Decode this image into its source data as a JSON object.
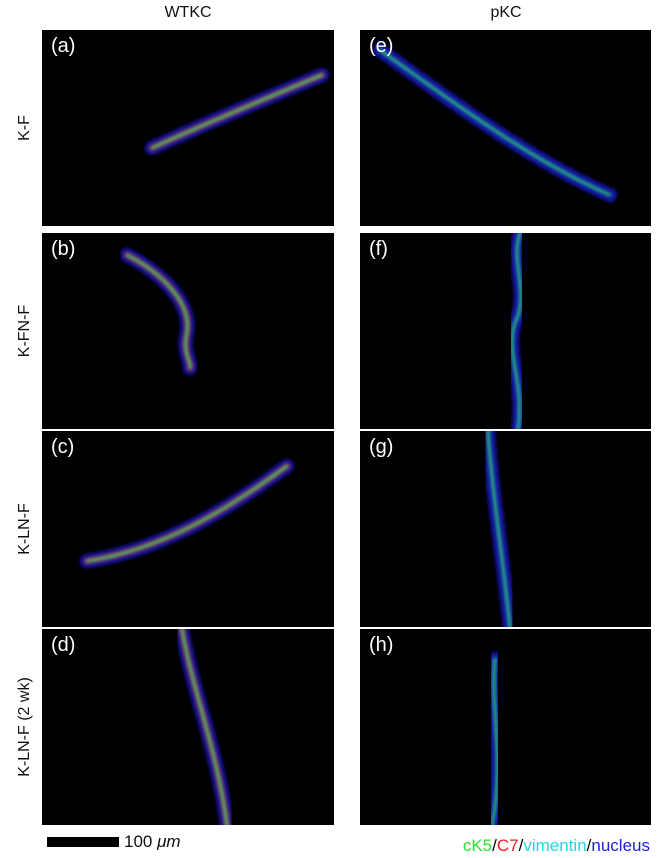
{
  "columns": [
    "WTKC",
    "pKC"
  ],
  "rows": [
    "K-F",
    "K-FN-F",
    "K-LN-F",
    "K-LN-F (2 wk)"
  ],
  "panels": [
    "(a)",
    "(b)",
    "(c)",
    "(d)",
    "(e)",
    "(f)",
    "(g)",
    "(h)"
  ],
  "scale_bar": {
    "value": "100",
    "unit": "μm"
  },
  "legend": {
    "items": [
      "cK5",
      "C7",
      "vimentin",
      "nucleus"
    ],
    "separator": "/"
  }
}
